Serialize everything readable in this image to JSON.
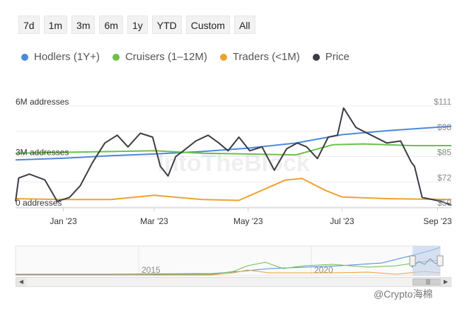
{
  "range_selector": {
    "buttons": [
      {
        "id": "7d",
        "label": "7d"
      },
      {
        "id": "1m",
        "label": "1m"
      },
      {
        "id": "3m",
        "label": "3m"
      },
      {
        "id": "6m",
        "label": "6m"
      },
      {
        "id": "1y",
        "label": "1y"
      },
      {
        "id": "ytd",
        "label": "YTD"
      },
      {
        "id": "custom",
        "label": "Custom"
      },
      {
        "id": "all",
        "label": "All"
      }
    ]
  },
  "legend": [
    {
      "id": "hodlers",
      "label": "Hodlers (1Y+)",
      "color": "#4a89dc"
    },
    {
      "id": "cruisers",
      "label": "Cruisers (1–12M)",
      "color": "#6cc04a"
    },
    {
      "id": "traders",
      "label": "Traders (<1M)",
      "color": "#f0a030"
    },
    {
      "id": "price",
      "label": "Price",
      "color": "#3a3d44"
    }
  ],
  "brand_watermark": "IntoTheBlock",
  "corner_watermark": "@Crypto海棉",
  "chart_data": {
    "type": "line",
    "x_axis": {
      "range": [
        "2022-12-01",
        "2023-09-10"
      ],
      "ticks": [
        "Jan '23",
        "Mar '23",
        "May '23",
        "Jul '23",
        "Sep '23"
      ],
      "tick_dates": [
        "2023-01-01",
        "2023-03-01",
        "2023-05-01",
        "2023-07-01",
        "2023-09-01"
      ]
    },
    "y_left": {
      "range": [
        0,
        6
      ],
      "ticks": [
        0,
        3,
        6
      ],
      "tick_labels": [
        "0 addresses",
        "3M addresses",
        "6M addresses"
      ]
    },
    "y_right": {
      "range": [
        59,
        111
      ],
      "ticks": [
        59,
        72,
        85,
        98,
        111
      ],
      "tick_labels": [
        "$59",
        "$72",
        "$85",
        "$98",
        "$111"
      ]
    },
    "grid": true,
    "series": [
      {
        "name": "Hodlers (1Y+)",
        "axis": "left",
        "color": "#4a89dc",
        "dates": [
          "2022-12-01",
          "2023-01-01",
          "2023-02-01",
          "2023-03-01",
          "2023-04-01",
          "2023-05-01",
          "2023-06-01",
          "2023-07-01",
          "2023-08-01",
          "2023-09-10"
        ],
        "values": [
          2.8,
          2.9,
          3.05,
          3.15,
          3.3,
          3.5,
          3.8,
          4.3,
          4.55,
          4.8
        ]
      },
      {
        "name": "Cruisers (1–12M)",
        "axis": "left",
        "color": "#6cc04a",
        "dates": [
          "2022-12-01",
          "2023-01-01",
          "2023-02-01",
          "2023-03-01",
          "2023-04-01",
          "2023-05-01",
          "2023-06-01",
          "2023-06-25",
          "2023-07-15",
          "2023-08-15",
          "2023-09-10"
        ],
        "values": [
          3.2,
          3.25,
          3.3,
          3.35,
          3.2,
          3.15,
          3.1,
          3.7,
          3.75,
          3.65,
          3.65
        ]
      },
      {
        "name": "Traders (<1M)",
        "axis": "left",
        "color": "#f0a030",
        "dates": [
          "2022-12-01",
          "2023-01-01",
          "2023-02-01",
          "2023-03-01",
          "2023-04-01",
          "2023-04-25",
          "2023-05-10",
          "2023-05-25",
          "2023-06-05",
          "2023-06-20",
          "2023-07-01",
          "2023-08-01",
          "2023-09-10"
        ],
        "values": [
          0.5,
          0.45,
          0.45,
          0.7,
          0.45,
          0.4,
          1.0,
          1.6,
          1.7,
          1.0,
          0.6,
          0.5,
          0.45
        ]
      },
      {
        "name": "Price",
        "axis": "right",
        "color": "#3a3d44",
        "dates": [
          "2022-12-01",
          "2022-12-03",
          "2022-12-10",
          "2022-12-20",
          "2022-12-28",
          "2023-01-05",
          "2023-01-12",
          "2023-01-20",
          "2023-01-28",
          "2023-02-05",
          "2023-02-12",
          "2023-02-20",
          "2023-02-28",
          "2023-03-05",
          "2023-03-10",
          "2023-03-15",
          "2023-03-20",
          "2023-03-28",
          "2023-04-05",
          "2023-04-12",
          "2023-04-18",
          "2023-04-25",
          "2023-05-02",
          "2023-05-10",
          "2023-05-18",
          "2023-05-26",
          "2023-06-02",
          "2023-06-08",
          "2023-06-15",
          "2023-06-22",
          "2023-06-28",
          "2023-07-02",
          "2023-07-10",
          "2023-07-20",
          "2023-07-30",
          "2023-08-08",
          "2023-08-15",
          "2023-08-17",
          "2023-08-22",
          "2023-08-28",
          "2023-09-03",
          "2023-09-10"
        ],
        "values": [
          62,
          74,
          76,
          73,
          62,
          64,
          70,
          82,
          92,
          96,
          90,
          97,
          95,
          80,
          75,
          85,
          88,
          93,
          96,
          92,
          88,
          95,
          88,
          90,
          78,
          89,
          92,
          90,
          84,
          95,
          96,
          110,
          100,
          96,
          92,
          93,
          82,
          80,
          64,
          63,
          62,
          60
        ]
      }
    ]
  },
  "navigator": {
    "labels": [
      "2015",
      "2020"
    ]
  }
}
